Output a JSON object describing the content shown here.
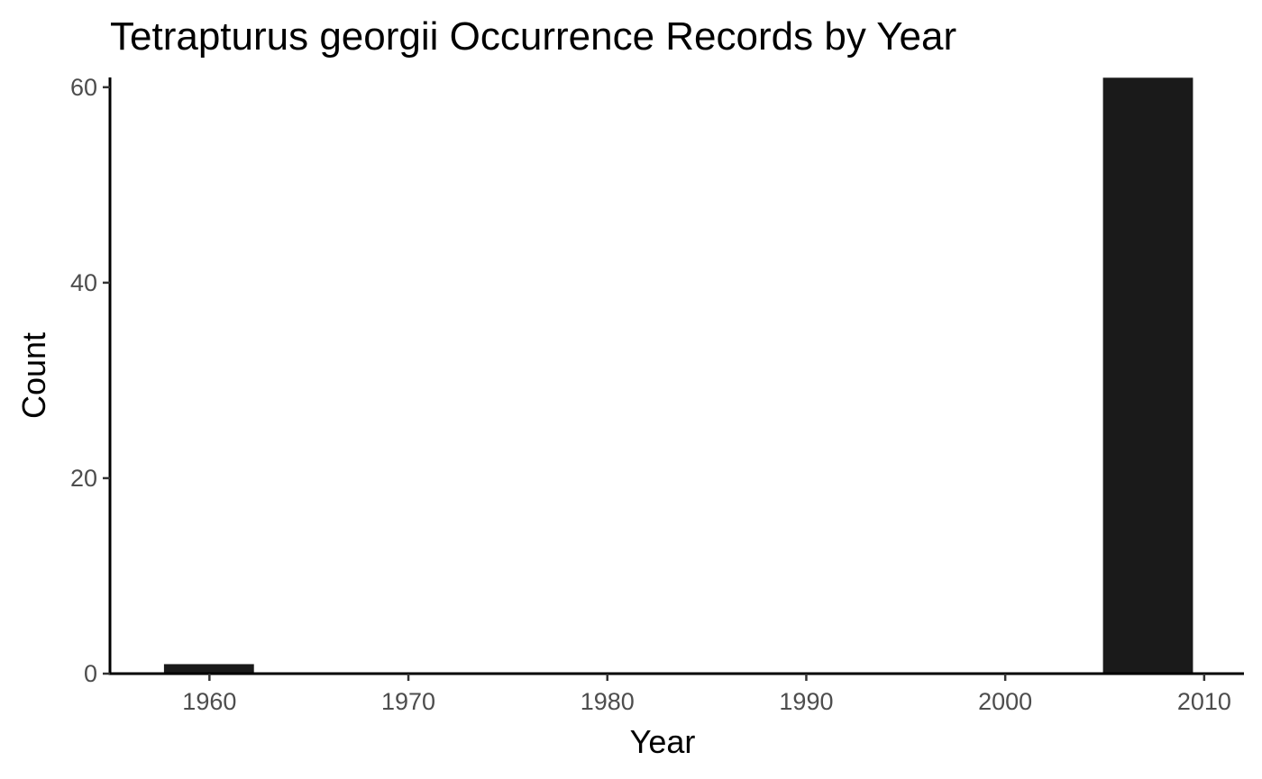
{
  "chart_data": {
    "type": "bar",
    "title": "Tetrapturus georgii Occurrence Records by Year",
    "xlabel": "Year",
    "ylabel": "Count",
    "bin_width": 4.55,
    "bins": [
      {
        "start": 1957.7,
        "end": 1962.25,
        "count": 1
      },
      {
        "start": 2004.9,
        "end": 2009.45,
        "count": 61
      }
    ],
    "xlim": [
      1955,
      2012
    ],
    "ylim": [
      0,
      61
    ],
    "x_ticks": [
      1960,
      1970,
      1980,
      1990,
      2000,
      2010
    ],
    "y_ticks": [
      0,
      20,
      40,
      60
    ],
    "bar_color": "#1a1a1a",
    "grid": false,
    "legend": "none"
  }
}
